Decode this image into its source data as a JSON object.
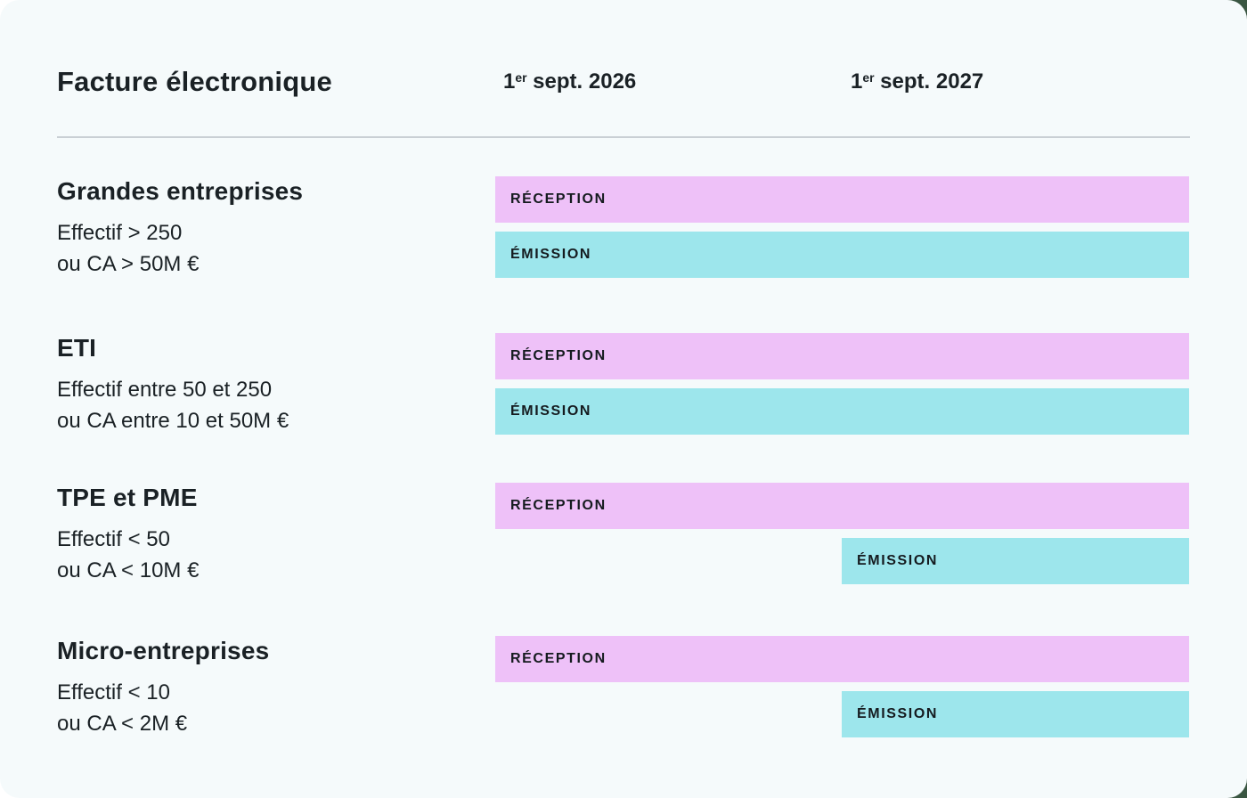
{
  "title": "Facture électronique",
  "timeline": {
    "columns": [
      {
        "prefix": "1",
        "sup": "er",
        "rest": " sept. 2026",
        "full": "1er sept. 2026"
      },
      {
        "prefix": "1",
        "sup": "er",
        "rest": " sept. 2027",
        "full": "1er sept. 2027"
      }
    ]
  },
  "rows": [
    {
      "name": "Grandes entreprises",
      "criteria": [
        "Effectif > 250",
        "ou CA > 50M €"
      ],
      "bars": [
        {
          "label": "RÉCEPTION",
          "type": "reception",
          "starts": "1er sept. 2026"
        },
        {
          "label": "ÉMISSION",
          "type": "emission",
          "starts": "1er sept. 2026"
        }
      ]
    },
    {
      "name": "ETI",
      "criteria": [
        "Effectif entre 50 et 250",
        "ou CA entre 10 et 50M €"
      ],
      "bars": [
        {
          "label": "RÉCEPTION",
          "type": "reception",
          "starts": "1er sept. 2026"
        },
        {
          "label": "ÉMISSION",
          "type": "emission",
          "starts": "1er sept. 2026"
        }
      ]
    },
    {
      "name": "TPE et PME",
      "criteria": [
        "Effectif < 50",
        "ou CA < 10M €"
      ],
      "bars": [
        {
          "label": "RÉCEPTION",
          "type": "reception",
          "starts": "1er sept. 2026"
        },
        {
          "label": "ÉMISSION",
          "type": "emission",
          "starts": "1er sept. 2027"
        }
      ]
    },
    {
      "name": "Micro-entreprises",
      "criteria": [
        "Effectif < 10",
        "ou CA < 2M €"
      ],
      "bars": [
        {
          "label": "RÉCEPTION",
          "type": "reception",
          "starts": "1er sept. 2026"
        },
        {
          "label": "ÉMISSION",
          "type": "emission",
          "starts": "1er sept. 2027"
        }
      ]
    }
  ],
  "chart_data": {
    "type": "bar",
    "title": "Facture électronique",
    "orientation": "horizontal-timeline",
    "x": [
      "1er sept. 2026",
      "1er sept. 2027"
    ],
    "categories": [
      "Grandes entreprises",
      "ETI",
      "TPE et PME",
      "Micro-entreprises"
    ],
    "series": [
      {
        "name": "RÉCEPTION",
        "color": "#EEC1F8",
        "start_dates": [
          "1er sept. 2026",
          "1er sept. 2026",
          "1er sept. 2026",
          "1er sept. 2026"
        ]
      },
      {
        "name": "ÉMISSION",
        "color": "#9DE6EC",
        "start_dates": [
          "1er sept. 2026",
          "1er sept. 2026",
          "1er sept. 2027",
          "1er sept. 2027"
        ]
      }
    ],
    "annotations": [
      "Grandes entreprises : Effectif > 250 ou CA > 50M €",
      "ETI : Effectif entre 50 et 250 ou CA entre 10 et 50M €",
      "TPE et PME : Effectif < 50 ou CA < 10M €",
      "Micro-entreprises : Effectif < 10 ou CA < 2M €"
    ],
    "legend_position": "none",
    "grid": false
  },
  "colors": {
    "pink": "#EEC1F8",
    "cyan": "#9DE6EC",
    "card": "#F5FAFB",
    "green": "#3A5642",
    "divider": "#C9CFD4",
    "text": "#1A2125",
    "bar-text": "#151B1F"
  }
}
